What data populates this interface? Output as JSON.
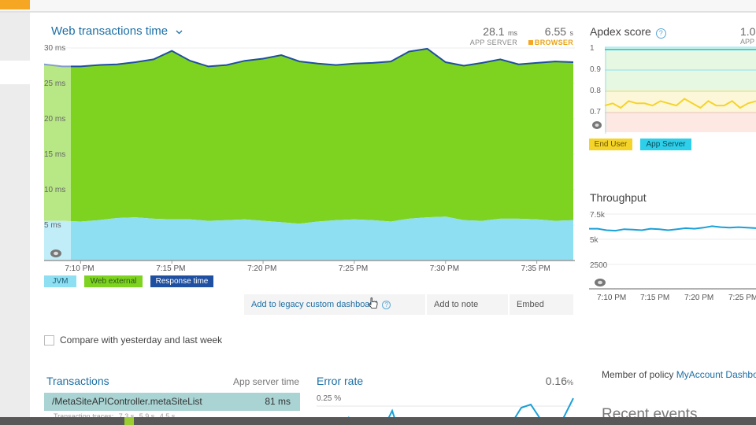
{
  "web_tx": {
    "title": "Web transactions time",
    "app_server_value": "28.1",
    "app_server_unit": "ms",
    "app_server_label": "APP SERVER",
    "browser_value": "6.55",
    "browser_unit": "s",
    "browser_label": "BROWSER",
    "legend": [
      "JVM",
      "Web external",
      "Response time"
    ],
    "colors": {
      "jvm": "#8fdff2",
      "web_external": "#7ed321",
      "response": "#1f4fa0"
    }
  },
  "chart_data": [
    {
      "type": "area",
      "title": "Web transactions time",
      "x": [
        "7:08 PM",
        "7:09 PM",
        "7:10 PM",
        "7:11 PM",
        "7:12 PM",
        "7:13 PM",
        "7:14 PM",
        "7:15 PM",
        "7:16 PM",
        "7:17 PM",
        "7:18 PM",
        "7:19 PM",
        "7:20 PM",
        "7:21 PM",
        "7:22 PM",
        "7:23 PM",
        "7:24 PM",
        "7:25 PM",
        "7:26 PM",
        "7:27 PM",
        "7:28 PM",
        "7:29 PM",
        "7:30 PM",
        "7:31 PM",
        "7:32 PM",
        "7:33 PM",
        "7:34 PM",
        "7:35 PM",
        "7:36 PM",
        "7:37 PM"
      ],
      "xticks": [
        "7:10 PM",
        "7:15 PM",
        "7:20 PM",
        "7:25 PM",
        "7:30 PM",
        "7:35 PM"
      ],
      "yticks": [
        "30 ms",
        "25 ms",
        "20 ms",
        "15 ms",
        "10 ms",
        "5 ms"
      ],
      "ylim": [
        0,
        30
      ],
      "series": [
        {
          "name": "JVM",
          "values": [
            5.6,
            5.6,
            5.5,
            5.7,
            6.0,
            6.1,
            5.9,
            5.8,
            5.8,
            5.6,
            5.7,
            5.8,
            5.6,
            5.4,
            5.2,
            5.5,
            5.7,
            5.8,
            5.7,
            5.5,
            5.9,
            6.1,
            6.2,
            5.7,
            5.6,
            5.9,
            5.9,
            5.8,
            5.6,
            5.7
          ]
        },
        {
          "name": "Web external",
          "values": [
            22.1,
            21.8,
            21.9,
            21.9,
            21.7,
            21.9,
            22.5,
            23.8,
            22.3,
            21.8,
            21.9,
            22.4,
            22.9,
            23.6,
            22.9,
            22.3,
            21.9,
            22.0,
            22.2,
            22.6,
            23.6,
            23.8,
            21.8,
            21.8,
            22.3,
            22.5,
            21.8,
            22.1,
            22.5,
            22.3
          ]
        },
        {
          "name": "Response time",
          "values": [
            27.7,
            27.4,
            27.4,
            27.6,
            27.7,
            28.0,
            28.4,
            29.6,
            28.2,
            27.4,
            27.6,
            28.2,
            28.5,
            29.0,
            28.1,
            27.8,
            27.6,
            27.8,
            27.9,
            28.1,
            29.5,
            29.9,
            28.0,
            27.5,
            27.9,
            28.4,
            27.7,
            27.9,
            28.1,
            28.0
          ]
        }
      ]
    },
    {
      "type": "line",
      "title": "Apdex score",
      "yticks": [
        "1",
        "0.9",
        "0.8",
        "0.7"
      ],
      "ylim": [
        0.6,
        1.0
      ],
      "series": [
        {
          "name": "End User",
          "values": [
            0.74,
            0.75,
            0.73,
            0.76,
            0.75,
            0.75,
            0.74,
            0.76,
            0.75,
            0.74,
            0.77,
            0.75,
            0.73,
            0.76,
            0.74,
            0.74,
            0.76,
            0.73,
            0.75,
            0.76
          ]
        },
        {
          "name": "App Server",
          "values": [
            0.99,
            0.99,
            0.99,
            0.99,
            0.99,
            0.99,
            0.99,
            0.99,
            0.99,
            0.99,
            0.99,
            0.99,
            0.99,
            0.99,
            0.99,
            0.99,
            0.99,
            0.99,
            0.99,
            0.99
          ]
        }
      ]
    },
    {
      "type": "line",
      "title": "Throughput",
      "yticks": [
        "7.5k",
        "5k",
        "2500"
      ],
      "xticks": [
        "7:10 PM",
        "7:15 PM",
        "7:20 PM",
        "7:25 PM"
      ],
      "ylim": [
        0,
        7500
      ],
      "series": [
        {
          "values": [
            6050,
            6050,
            5900,
            5850,
            6000,
            5950,
            5900,
            6050,
            6000,
            5900,
            6000,
            6100,
            6050,
            6150,
            6300,
            6200,
            6150,
            6200,
            6150,
            6100
          ]
        }
      ]
    },
    {
      "type": "line",
      "title": "Error rate",
      "yticks": [
        "0.25 %"
      ],
      "series": [
        {
          "values": [
            0.05,
            0.16
          ]
        }
      ]
    }
  ],
  "apdex": {
    "title": "Apdex score",
    "value_partial": "1.0",
    "sub_partial": "APP",
    "legend": [
      "End User",
      "App Server"
    ]
  },
  "throughput": {
    "title": "Throughput"
  },
  "actions": {
    "add_legacy": "Add to legacy custom dashboard",
    "add_note": "Add to note",
    "embed": "Embed"
  },
  "compare": {
    "label": "Compare with yesterday and last week"
  },
  "transactions": {
    "title": "Transactions",
    "col_label": "App server time",
    "rows": [
      {
        "name": "/MetaSiteAPIController.metaSiteList",
        "value": "81 ms"
      }
    ],
    "traces_label": "Transaction traces:",
    "traces_values": [
      "7.3 s",
      "5.9 s",
      "4.5 s"
    ]
  },
  "error_rate": {
    "title": "Error rate",
    "value": "0.16",
    "unit": "%"
  },
  "policy": {
    "prefix": "Member of policy",
    "link": "MyAccount Dashboa"
  },
  "recent_events": {
    "title": "Recent events"
  }
}
